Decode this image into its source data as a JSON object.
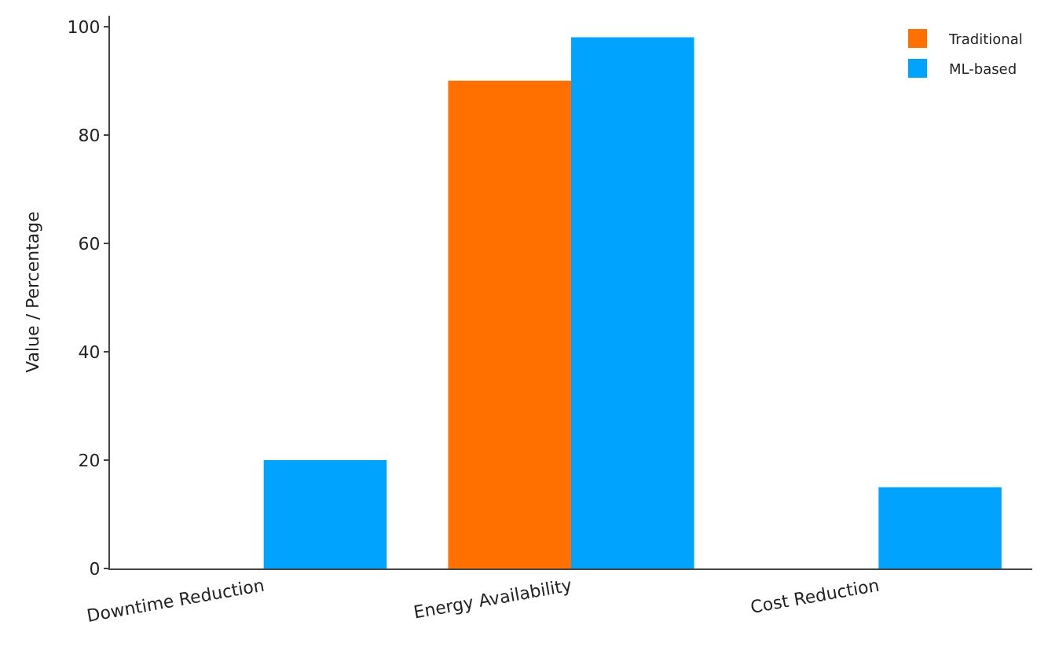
{
  "chart_data": {
    "type": "bar",
    "ylabel": "Value / Percentage",
    "categories": [
      "Downtime Reduction",
      "Energy Availability",
      "Cost Reduction"
    ],
    "series": [
      {
        "name": "Traditional",
        "color": "#ff7000",
        "values": [
          0,
          90,
          0
        ]
      },
      {
        "name": "ML-based",
        "color": "#00a4ff",
        "values": [
          20,
          98,
          15
        ]
      }
    ],
    "ylim": [
      0,
      102
    ],
    "yticks": [
      0,
      20,
      40,
      60,
      80,
      100
    ],
    "grid": false,
    "legend": "top right"
  }
}
